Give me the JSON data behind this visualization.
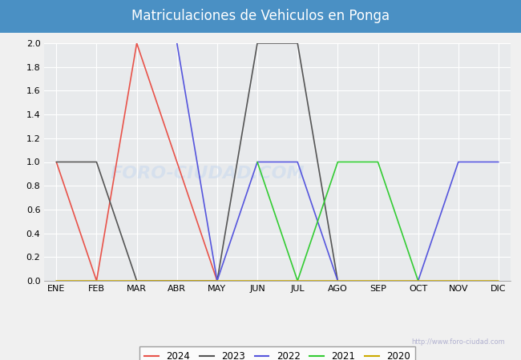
{
  "title": "Matriculaciones de Vehiculos en Ponga",
  "months": [
    "ENE",
    "FEB",
    "MAR",
    "ABR",
    "MAY",
    "JUN",
    "JUL",
    "AGO",
    "SEP",
    "OCT",
    "NOV",
    "DIC"
  ],
  "series": {
    "2024": [
      1,
      0,
      2,
      1,
      0,
      null,
      null,
      null,
      null,
      null,
      null,
      null
    ],
    "2023": [
      1,
      1,
      0,
      0,
      0,
      2,
      2,
      0,
      null,
      null,
      null,
      null
    ],
    "2022": [
      null,
      null,
      null,
      2,
      0,
      1,
      1,
      0,
      null,
      0,
      1,
      1
    ],
    "2021": [
      null,
      null,
      null,
      null,
      null,
      1,
      0,
      1,
      1,
      0,
      null,
      null
    ],
    "2020": [
      0,
      0,
      0,
      0,
      0,
      0,
      0,
      0,
      0,
      0,
      0,
      0
    ]
  },
  "colors": {
    "2024": "#e8534a",
    "2023": "#555555",
    "2022": "#5555dd",
    "2021": "#33cc33",
    "2020": "#ccaa00"
  },
  "ylim": [
    0,
    2.0
  ],
  "yticks": [
    0.0,
    0.2,
    0.4,
    0.6,
    0.8,
    1.0,
    1.2,
    1.4,
    1.6,
    1.8,
    2.0
  ],
  "title_bg_color": "#4a90c4",
  "plot_bg_color": "#e8eaec",
  "fig_bg_color": "#f0f0f0",
  "grid_color": "#ffffff",
  "watermark_small": "http://www.foro-ciudad.com",
  "watermark_big": "FORO-CIUDAD.COM"
}
